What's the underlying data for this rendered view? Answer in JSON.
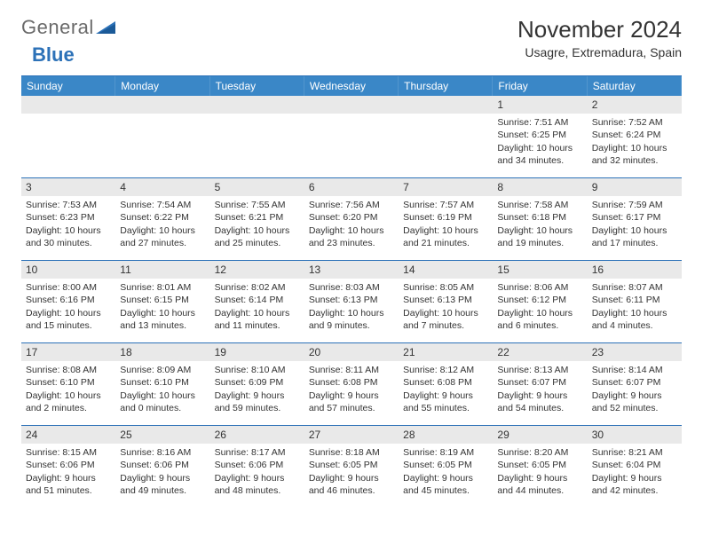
{
  "logo": {
    "part1": "General",
    "part2": "Blue"
  },
  "title": "November 2024",
  "location": "Usagre, Extremadura, Spain",
  "colors": {
    "header_bg": "#3a87c7",
    "accent": "#2d72b8",
    "daynum_bg": "#e9e9e9",
    "text": "#333333",
    "logo_gray": "#6a6a6a"
  },
  "typography": {
    "title_fontsize": 26,
    "location_fontsize": 14,
    "dayhead_fontsize": 12,
    "cell_fontsize": 10.5
  },
  "daynames": [
    "Sunday",
    "Monday",
    "Tuesday",
    "Wednesday",
    "Thursday",
    "Friday",
    "Saturday"
  ],
  "weeks": [
    [
      null,
      null,
      null,
      null,
      null,
      {
        "n": "1",
        "sunrise": "Sunrise: 7:51 AM",
        "sunset": "Sunset: 6:25 PM",
        "daylight": "Daylight: 10 hours and 34 minutes."
      },
      {
        "n": "2",
        "sunrise": "Sunrise: 7:52 AM",
        "sunset": "Sunset: 6:24 PM",
        "daylight": "Daylight: 10 hours and 32 minutes."
      }
    ],
    [
      {
        "n": "3",
        "sunrise": "Sunrise: 7:53 AM",
        "sunset": "Sunset: 6:23 PM",
        "daylight": "Daylight: 10 hours and 30 minutes."
      },
      {
        "n": "4",
        "sunrise": "Sunrise: 7:54 AM",
        "sunset": "Sunset: 6:22 PM",
        "daylight": "Daylight: 10 hours and 27 minutes."
      },
      {
        "n": "5",
        "sunrise": "Sunrise: 7:55 AM",
        "sunset": "Sunset: 6:21 PM",
        "daylight": "Daylight: 10 hours and 25 minutes."
      },
      {
        "n": "6",
        "sunrise": "Sunrise: 7:56 AM",
        "sunset": "Sunset: 6:20 PM",
        "daylight": "Daylight: 10 hours and 23 minutes."
      },
      {
        "n": "7",
        "sunrise": "Sunrise: 7:57 AM",
        "sunset": "Sunset: 6:19 PM",
        "daylight": "Daylight: 10 hours and 21 minutes."
      },
      {
        "n": "8",
        "sunrise": "Sunrise: 7:58 AM",
        "sunset": "Sunset: 6:18 PM",
        "daylight": "Daylight: 10 hours and 19 minutes."
      },
      {
        "n": "9",
        "sunrise": "Sunrise: 7:59 AM",
        "sunset": "Sunset: 6:17 PM",
        "daylight": "Daylight: 10 hours and 17 minutes."
      }
    ],
    [
      {
        "n": "10",
        "sunrise": "Sunrise: 8:00 AM",
        "sunset": "Sunset: 6:16 PM",
        "daylight": "Daylight: 10 hours and 15 minutes."
      },
      {
        "n": "11",
        "sunrise": "Sunrise: 8:01 AM",
        "sunset": "Sunset: 6:15 PM",
        "daylight": "Daylight: 10 hours and 13 minutes."
      },
      {
        "n": "12",
        "sunrise": "Sunrise: 8:02 AM",
        "sunset": "Sunset: 6:14 PM",
        "daylight": "Daylight: 10 hours and 11 minutes."
      },
      {
        "n": "13",
        "sunrise": "Sunrise: 8:03 AM",
        "sunset": "Sunset: 6:13 PM",
        "daylight": "Daylight: 10 hours and 9 minutes."
      },
      {
        "n": "14",
        "sunrise": "Sunrise: 8:05 AM",
        "sunset": "Sunset: 6:13 PM",
        "daylight": "Daylight: 10 hours and 7 minutes."
      },
      {
        "n": "15",
        "sunrise": "Sunrise: 8:06 AM",
        "sunset": "Sunset: 6:12 PM",
        "daylight": "Daylight: 10 hours and 6 minutes."
      },
      {
        "n": "16",
        "sunrise": "Sunrise: 8:07 AM",
        "sunset": "Sunset: 6:11 PM",
        "daylight": "Daylight: 10 hours and 4 minutes."
      }
    ],
    [
      {
        "n": "17",
        "sunrise": "Sunrise: 8:08 AM",
        "sunset": "Sunset: 6:10 PM",
        "daylight": "Daylight: 10 hours and 2 minutes."
      },
      {
        "n": "18",
        "sunrise": "Sunrise: 8:09 AM",
        "sunset": "Sunset: 6:10 PM",
        "daylight": "Daylight: 10 hours and 0 minutes."
      },
      {
        "n": "19",
        "sunrise": "Sunrise: 8:10 AM",
        "sunset": "Sunset: 6:09 PM",
        "daylight": "Daylight: 9 hours and 59 minutes."
      },
      {
        "n": "20",
        "sunrise": "Sunrise: 8:11 AM",
        "sunset": "Sunset: 6:08 PM",
        "daylight": "Daylight: 9 hours and 57 minutes."
      },
      {
        "n": "21",
        "sunrise": "Sunrise: 8:12 AM",
        "sunset": "Sunset: 6:08 PM",
        "daylight": "Daylight: 9 hours and 55 minutes."
      },
      {
        "n": "22",
        "sunrise": "Sunrise: 8:13 AM",
        "sunset": "Sunset: 6:07 PM",
        "daylight": "Daylight: 9 hours and 54 minutes."
      },
      {
        "n": "23",
        "sunrise": "Sunrise: 8:14 AM",
        "sunset": "Sunset: 6:07 PM",
        "daylight": "Daylight: 9 hours and 52 minutes."
      }
    ],
    [
      {
        "n": "24",
        "sunrise": "Sunrise: 8:15 AM",
        "sunset": "Sunset: 6:06 PM",
        "daylight": "Daylight: 9 hours and 51 minutes."
      },
      {
        "n": "25",
        "sunrise": "Sunrise: 8:16 AM",
        "sunset": "Sunset: 6:06 PM",
        "daylight": "Daylight: 9 hours and 49 minutes."
      },
      {
        "n": "26",
        "sunrise": "Sunrise: 8:17 AM",
        "sunset": "Sunset: 6:06 PM",
        "daylight": "Daylight: 9 hours and 48 minutes."
      },
      {
        "n": "27",
        "sunrise": "Sunrise: 8:18 AM",
        "sunset": "Sunset: 6:05 PM",
        "daylight": "Daylight: 9 hours and 46 minutes."
      },
      {
        "n": "28",
        "sunrise": "Sunrise: 8:19 AM",
        "sunset": "Sunset: 6:05 PM",
        "daylight": "Daylight: 9 hours and 45 minutes."
      },
      {
        "n": "29",
        "sunrise": "Sunrise: 8:20 AM",
        "sunset": "Sunset: 6:05 PM",
        "daylight": "Daylight: 9 hours and 44 minutes."
      },
      {
        "n": "30",
        "sunrise": "Sunrise: 8:21 AM",
        "sunset": "Sunset: 6:04 PM",
        "daylight": "Daylight: 9 hours and 42 minutes."
      }
    ]
  ]
}
